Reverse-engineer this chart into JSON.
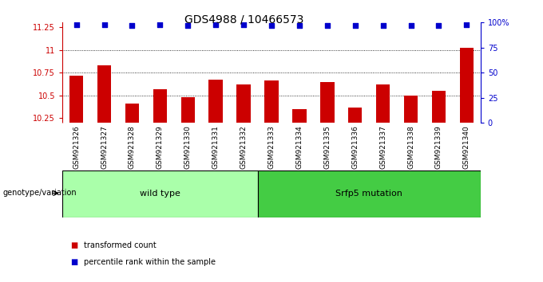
{
  "title": "GDS4988 / 10466573",
  "samples": [
    "GSM921326",
    "GSM921327",
    "GSM921328",
    "GSM921329",
    "GSM921330",
    "GSM921331",
    "GSM921332",
    "GSM921333",
    "GSM921334",
    "GSM921335",
    "GSM921336",
    "GSM921337",
    "GSM921338",
    "GSM921339",
    "GSM921340"
  ],
  "transformed_counts": [
    10.72,
    10.83,
    10.41,
    10.57,
    10.48,
    10.67,
    10.62,
    10.66,
    10.35,
    10.65,
    10.37,
    10.62,
    10.5,
    10.55,
    11.02
  ],
  "percentile_ranks": [
    98,
    98,
    97,
    98,
    97,
    98,
    98,
    97,
    97,
    97,
    97,
    97,
    97,
    97,
    98
  ],
  "ylim_left": [
    10.2,
    11.3
  ],
  "ylim_right": [
    0,
    100
  ],
  "yticks_left": [
    10.25,
    10.5,
    10.75,
    11.0,
    11.25
  ],
  "yticks_right": [
    0,
    25,
    50,
    75,
    100
  ],
  "ytick_labels_left": [
    "10.25",
    "10.5",
    "10.75",
    "11",
    "11.25"
  ],
  "ytick_labels_right": [
    "0",
    "25",
    "50",
    "75",
    "100%"
  ],
  "bar_color": "#cc0000",
  "scatter_color": "#0000cc",
  "gridline_y": [
    10.5,
    10.75,
    11.0
  ],
  "groups": [
    {
      "label": "wild type",
      "start": 0,
      "end": 7,
      "color": "#aaffaa"
    },
    {
      "label": "Srfp5 mutation",
      "start": 7,
      "end": 15,
      "color": "#44cc44"
    }
  ],
  "legend_items": [
    {
      "color": "#cc0000",
      "label": "transformed count"
    },
    {
      "color": "#0000cc",
      "label": "percentile rank within the sample"
    }
  ],
  "xlabel_left": "genotype/variation",
  "background_color": "#ffffff",
  "bar_baseline": 10.2,
  "xticklabel_fontsize": 6.5,
  "title_fontsize": 10,
  "ytick_fontsize": 7,
  "legend_fontsize": 7
}
